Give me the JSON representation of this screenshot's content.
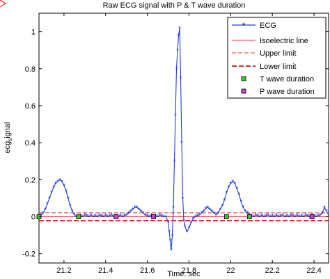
{
  "chart_data": {
    "type": "line",
    "title": "Raw ECG signal with P & T  wave duration",
    "xlabel": "Time. sec",
    "ylabel": "ecg_signal",
    "ylabel_main": "ecg",
    "ylabel_sub": "s",
    "ylabel_tail": "ignal",
    "xlim": [
      21.08,
      22.47
    ],
    "ylim": [
      -0.25,
      1.1
    ],
    "xticks": [
      21.2,
      21.4,
      21.6,
      21.8,
      22.0,
      22.2,
      22.4
    ],
    "xtick_labels": [
      "21.2",
      "21.4",
      "21.6",
      "21.8",
      "22",
      "22.2",
      "22.4"
    ],
    "yticks": [
      -0.2,
      0,
      0.2,
      0.4,
      0.6,
      0.8,
      1
    ],
    "ytick_labels": [
      "-0.2",
      "0",
      "0.2",
      "0.4",
      "0.6",
      "0.8",
      "1"
    ],
    "grid": false,
    "legend_position": "top-right",
    "colors": {
      "ecg": "#1f3fd6",
      "limits": "#ee3333",
      "t_marker": "#33cc33",
      "p_marker": "#cc44cc",
      "axis": "#000000"
    },
    "series": [
      {
        "name": "ECG",
        "style": "line-star",
        "x": [
          21.08,
          21.09,
          21.1,
          21.11,
          21.12,
          21.13,
          21.14,
          21.15,
          21.16,
          21.17,
          21.18,
          21.19,
          21.2,
          21.21,
          21.22,
          21.23,
          21.24,
          21.25,
          21.26,
          21.27,
          21.28,
          21.29,
          21.3,
          21.31,
          21.32,
          21.33,
          21.34,
          21.35,
          21.36,
          21.37,
          21.38,
          21.39,
          21.4,
          21.41,
          21.42,
          21.43,
          21.44,
          21.45,
          21.46,
          21.47,
          21.48,
          21.49,
          21.5,
          21.51,
          21.52,
          21.53,
          21.54,
          21.55,
          21.56,
          21.57,
          21.58,
          21.59,
          21.6,
          21.61,
          21.62,
          21.63,
          21.64,
          21.65,
          21.66,
          21.67,
          21.68,
          21.69,
          21.7,
          21.705,
          21.71,
          21.715,
          21.72,
          21.725,
          21.73,
          21.735,
          21.74,
          21.745,
          21.75,
          21.755,
          21.76,
          21.765,
          21.77,
          21.775,
          21.78,
          21.79,
          21.8,
          21.81,
          21.82,
          21.83,
          21.84,
          21.85,
          21.86,
          21.87,
          21.88,
          21.89,
          21.9,
          21.91,
          21.92,
          21.93,
          21.94,
          21.95,
          21.96,
          21.97,
          21.98,
          21.99,
          22.0,
          22.01,
          22.02,
          22.03,
          22.04,
          22.05,
          22.06,
          22.07,
          22.08,
          22.09,
          22.1,
          22.11,
          22.12,
          22.13,
          22.14,
          22.15,
          22.16,
          22.17,
          22.18,
          22.19,
          22.2,
          22.21,
          22.22,
          22.23,
          22.24,
          22.25,
          22.26,
          22.27,
          22.28,
          22.29,
          22.3,
          22.31,
          22.32,
          22.33,
          22.34,
          22.35,
          22.36,
          22.37,
          22.38,
          22.39,
          22.4,
          22.41,
          22.42,
          22.43,
          22.44,
          22.45,
          22.46,
          22.47
        ],
        "y": [
          0.0,
          0.01,
          0.02,
          0.04,
          0.07,
          0.1,
          0.13,
          0.16,
          0.18,
          0.19,
          0.2,
          0.19,
          0.17,
          0.14,
          0.1,
          0.06,
          0.03,
          0.01,
          0.0,
          0.0,
          0.005,
          0.0,
          0.01,
          0.005,
          0.0,
          0.01,
          0.0,
          0.005,
          0.0,
          0.01,
          0.005,
          0.0,
          0.01,
          0.0,
          0.005,
          0.01,
          0.0,
          0.005,
          0.0,
          0.01,
          0.0,
          0.005,
          0.01,
          0.02,
          0.03,
          0.04,
          0.05,
          0.05,
          0.04,
          0.03,
          0.02,
          0.01,
          0.005,
          0.0,
          0.01,
          0.0,
          0.005,
          0.0,
          0.01,
          0.005,
          0.0,
          0.0,
          -0.03,
          -0.08,
          -0.13,
          -0.18,
          -0.1,
          0.05,
          0.3,
          0.55,
          0.8,
          0.9,
          0.98,
          1.02,
          0.75,
          0.4,
          0.1,
          -0.02,
          -0.05,
          -0.08,
          -0.06,
          -0.03,
          -0.01,
          0.0,
          0.005,
          0.01,
          0.02,
          0.03,
          0.045,
          0.05,
          0.04,
          0.03,
          0.02,
          0.01,
          0.02,
          0.04,
          0.06,
          0.09,
          0.13,
          0.16,
          0.18,
          0.19,
          0.18,
          0.15,
          0.12,
          0.08,
          0.05,
          0.03,
          0.02,
          0.01,
          0.005,
          0.0,
          0.01,
          0.005,
          0.0,
          0.01,
          0.0,
          0.005,
          0.01,
          0.0,
          0.005,
          0.0,
          0.01,
          0.0,
          0.005,
          0.01,
          0.0,
          0.005,
          0.0,
          0.01,
          0.005,
          0.0,
          0.01,
          0.0,
          0.005,
          0.0,
          0.01,
          0.005,
          0.0,
          0.01,
          0.005,
          0.0,
          0.005,
          0.01,
          0.02,
          0.05,
          0.03,
          0.01
        ]
      },
      {
        "name": "Isoelectric line",
        "style": "solid",
        "y": 0.0
      },
      {
        "name": "Upper limit",
        "style": "dashed-thin",
        "y": 0.01
      },
      {
        "name": "Lower limit",
        "style": "dashed-thick",
        "y": -0.01
      },
      {
        "name": "T wave duration",
        "style": "marker",
        "x": [
          21.08,
          21.27,
          21.98,
          22.09
        ],
        "y": [
          0.0,
          0.0,
          0.0,
          0.0
        ]
      },
      {
        "name": "P wave duration",
        "style": "marker",
        "x": [
          21.45,
          21.63,
          22.39
        ],
        "y": [
          0.0,
          0.0,
          0.0
        ]
      }
    ]
  }
}
